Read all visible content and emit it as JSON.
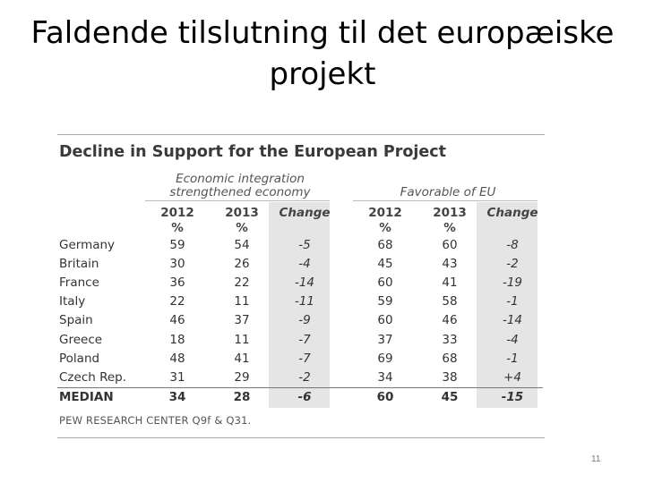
{
  "slide": {
    "title_line1": "Faldende tilslutning til det europæiske",
    "title_line2": "projekt",
    "page_number": "11"
  },
  "figure": {
    "title": "Decline in Support for the European Project",
    "group1_line1": "Economic integration",
    "group1_line2": "strengthened economy",
    "group2": "Favorable of EU",
    "col_2012": "2012",
    "col_2013": "2013",
    "col_change": "Change",
    "pct": "%",
    "source": "PEW RESEARCH CENTER Q9f & Q31.",
    "rows": [
      {
        "country": "Germany",
        "e2012": "59",
        "e2013": "54",
        "echange": "-5",
        "f2012": "68",
        "f2013": "60",
        "fchange": "-8"
      },
      {
        "country": "Britain",
        "e2012": "30",
        "e2013": "26",
        "echange": "-4",
        "f2012": "45",
        "f2013": "43",
        "fchange": "-2"
      },
      {
        "country": "France",
        "e2012": "36",
        "e2013": "22",
        "echange": "-14",
        "f2012": "60",
        "f2013": "41",
        "fchange": "-19"
      },
      {
        "country": "Italy",
        "e2012": "22",
        "e2013": "11",
        "echange": "-11",
        "f2012": "59",
        "f2013": "58",
        "fchange": "-1"
      },
      {
        "country": "Spain",
        "e2012": "46",
        "e2013": "37",
        "echange": "-9",
        "f2012": "60",
        "f2013": "46",
        "fchange": "-14"
      },
      {
        "country": "Greece",
        "e2012": "18",
        "e2013": "11",
        "echange": "-7",
        "f2012": "37",
        "f2013": "33",
        "fchange": "-4"
      },
      {
        "country": "Poland",
        "e2012": "48",
        "e2013": "41",
        "echange": "-7",
        "f2012": "69",
        "f2013": "68",
        "fchange": "-1"
      },
      {
        "country": "Czech Rep.",
        "e2012": "31",
        "e2013": "29",
        "echange": "-2",
        "f2012": "34",
        "f2013": "38",
        "fchange": "+4"
      },
      {
        "country": "MEDIAN",
        "e2012": "34",
        "e2013": "28",
        "echange": "-6",
        "f2012": "60",
        "f2013": "45",
        "fchange": "-15"
      }
    ]
  }
}
